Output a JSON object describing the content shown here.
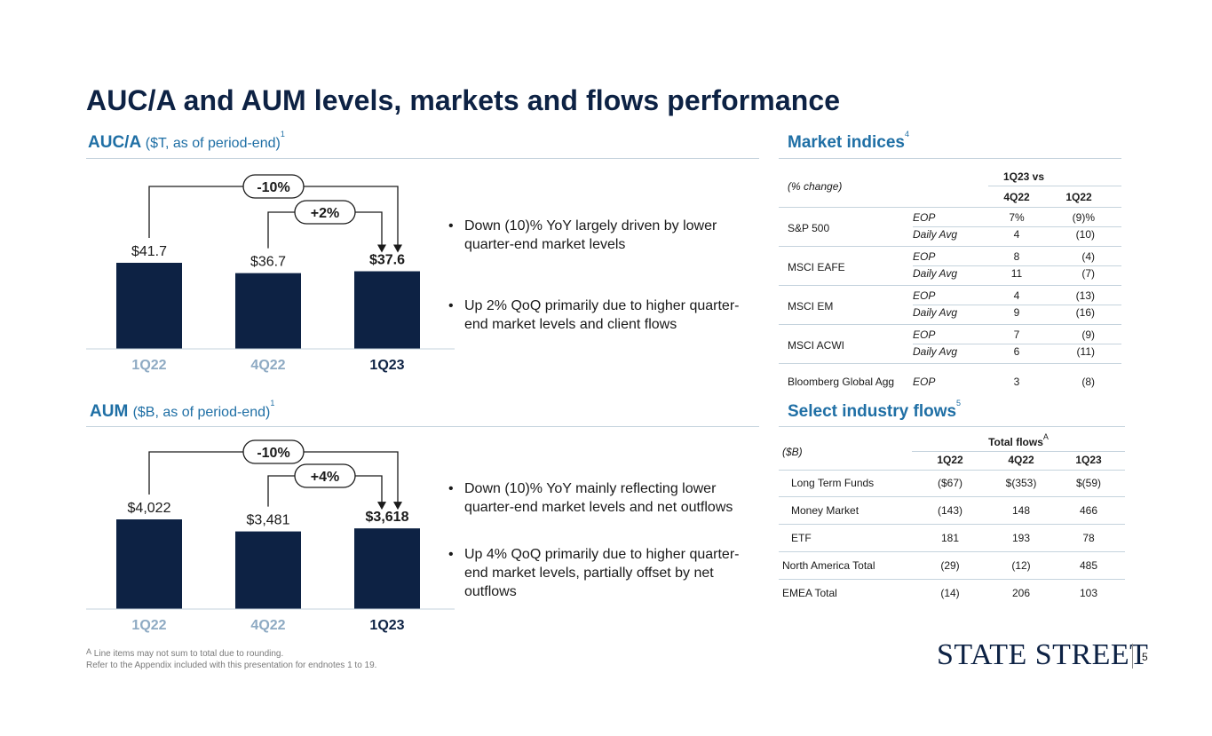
{
  "slide_title": "AUC/A and AUM levels, markets and flows performance",
  "auca": {
    "heading": "AUC/A",
    "subheading": "($T, as of period-end)",
    "note": "1",
    "bullets": [
      "Down (10)% YoY largely driven by lower quarter-end market levels",
      "Up 2% QoQ primarily due to higher quarter-end market levels and client flows"
    ],
    "yoy_label": "-10%",
    "qoq_label": "+2%"
  },
  "aum": {
    "heading": "AUM",
    "subheading": "($B, as of period-end)",
    "note": "1",
    "bullets": [
      "Down (10)% YoY mainly reflecting lower quarter-end market levels and net outflows",
      "Up 4% QoQ primarily due to higher quarter-end market levels, partially offset by net outflows"
    ],
    "yoy_label": "-10%",
    "qoq_label": "+4%"
  },
  "chart_data": [
    {
      "type": "bar",
      "title": "AUC/A",
      "categories": [
        "1Q22",
        "4Q22",
        "1Q23"
      ],
      "values": [
        41.7,
        36.7,
        37.6
      ],
      "value_labels": [
        "$41.7",
        "$36.7",
        "$37.6"
      ],
      "ylim": [
        0,
        41.7
      ],
      "bar_color": "#0d2244",
      "grid": false
    },
    {
      "type": "bar",
      "title": "AUM",
      "categories": [
        "1Q22",
        "4Q22",
        "1Q23"
      ],
      "values": [
        4022,
        3481,
        3618
      ],
      "value_labels": [
        "$4,022",
        "$3,481",
        "$3,618"
      ],
      "ylim": [
        0,
        4022
      ],
      "bar_color": "#0d2244",
      "grid": false
    }
  ],
  "market_indices": {
    "heading": "Market indices",
    "note": "4",
    "col_group": "1Q23 vs",
    "row_header": "(% change)",
    "columns": [
      "4Q22",
      "1Q22"
    ],
    "rows": [
      {
        "index": "S&P 500",
        "lines": [
          {
            "measure": "EOP",
            "v1": "7%",
            "v2": "(9)%"
          },
          {
            "measure": "Daily Avg",
            "v1": "4",
            "v2": "(10)"
          }
        ]
      },
      {
        "index": "MSCI EAFE",
        "lines": [
          {
            "measure": "EOP",
            "v1": "8",
            "v2": "(4)"
          },
          {
            "measure": "Daily Avg",
            "v1": "11",
            "v2": "(7)"
          }
        ]
      },
      {
        "index": "MSCI EM",
        "lines": [
          {
            "measure": "EOP",
            "v1": "4",
            "v2": "(13)"
          },
          {
            "measure": "Daily Avg",
            "v1": "9",
            "v2": "(16)"
          }
        ]
      },
      {
        "index": "MSCI ACWI",
        "lines": [
          {
            "measure": "EOP",
            "v1": "7",
            "v2": "(9)"
          },
          {
            "measure": "Daily Avg",
            "v1": "6",
            "v2": "(11)"
          }
        ]
      },
      {
        "index": "Bloomberg Global Agg",
        "lines": [
          {
            "measure": "EOP",
            "v1": "3",
            "v2": "(8)"
          }
        ]
      }
    ]
  },
  "industry_flows": {
    "heading": "Select industry flows",
    "note": "5",
    "col_group": "Total flows",
    "col_group_note": "A",
    "row_header": "($B)",
    "columns": [
      "1Q22",
      "4Q22",
      "1Q23"
    ],
    "rows": [
      {
        "label": "Long Term Funds",
        "values": [
          "($67)",
          "$(353)",
          "$(59)"
        ]
      },
      {
        "label": "Money Market",
        "values": [
          "(143)",
          "148",
          "466"
        ]
      },
      {
        "label": "ETF",
        "values": [
          "181",
          "193",
          "78"
        ]
      },
      {
        "label": "North America Total",
        "values": [
          "(29)",
          "(12)",
          "485"
        ]
      },
      {
        "label": "EMEA Total",
        "values": [
          "(14)",
          "206",
          "103"
        ]
      }
    ]
  },
  "footnotes": {
    "line1_mark": "A",
    "line1": "Line items may not sum to total due to rounding.",
    "line2": "Refer to the Appendix included with this presentation for endnotes 1 to 19."
  },
  "logo_text": "STATE STREET",
  "page_number": "5",
  "colors": {
    "navy": "#0d2244",
    "accent_blue": "#1f6fa5",
    "muted_axis": "#8eaac3",
    "rule": "#c5d3dd"
  }
}
